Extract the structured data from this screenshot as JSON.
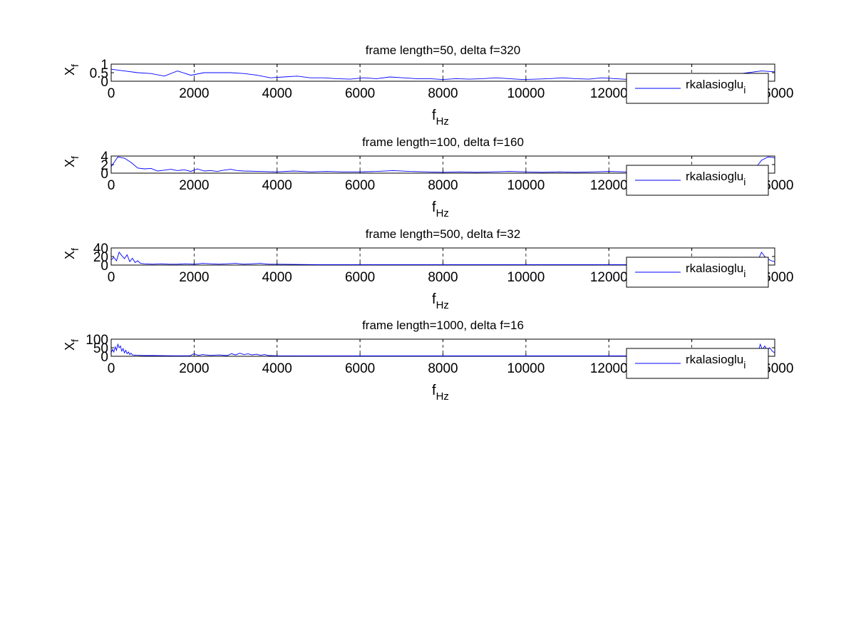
{
  "chart_data": [
    {
      "type": "line",
      "title": "frame length=50, delta f=320",
      "xlabel": "f",
      "xlabel_sub": "Hz",
      "ylabel": "X",
      "ylabel_sub": "f",
      "xlim": [
        0,
        16000
      ],
      "ylim": [
        0,
        1
      ],
      "xticks": [
        0,
        2000,
        4000,
        6000,
        8000,
        10000,
        12000,
        14000,
        16000
      ],
      "xtick_labels": [
        "0",
        "2000",
        "4000",
        "6000",
        "8000",
        "10000",
        "12000",
        "14000",
        "16000"
      ],
      "yticks": [
        0,
        0.5,
        1
      ],
      "ytick_labels": [
        "0",
        "0.5",
        "1"
      ],
      "grid": "x-dashed",
      "legend": "bottom-right",
      "series": [
        {
          "name": "rkalasioglu",
          "name_sub": "i",
          "color": "#0000ff",
          "x": [
            0,
            320,
            640,
            960,
            1280,
            1600,
            1920,
            2240,
            2560,
            2880,
            3200,
            3520,
            3840,
            4160,
            4480,
            4800,
            5120,
            5440,
            5760,
            6080,
            6400,
            6720,
            7040,
            7360,
            7680,
            8000,
            8320,
            8640,
            8960,
            9280,
            9600,
            9920,
            10240,
            10560,
            10880,
            11200,
            11520,
            11840,
            12160,
            12480,
            12800,
            13120,
            13440,
            13760,
            14080,
            14400,
            14720,
            15040,
            15360,
            15680,
            16000
          ],
          "y": [
            0.7,
            0.6,
            0.5,
            0.45,
            0.3,
            0.6,
            0.35,
            0.5,
            0.5,
            0.5,
            0.45,
            0.35,
            0.2,
            0.25,
            0.3,
            0.2,
            0.2,
            0.15,
            0.12,
            0.2,
            0.15,
            0.25,
            0.2,
            0.15,
            0.15,
            0.1,
            0.15,
            0.12,
            0.15,
            0.2,
            0.15,
            0.1,
            0.12,
            0.15,
            0.2,
            0.15,
            0.12,
            0.2,
            0.15,
            0.1,
            0.12,
            0.15,
            0.1,
            0.12,
            0.15,
            0.2,
            0.3,
            0.4,
            0.5,
            0.6,
            0.55
          ]
        }
      ]
    },
    {
      "type": "line",
      "title": "frame length=100, delta f=160",
      "xlabel": "f",
      "xlabel_sub": "Hz",
      "ylabel": "X",
      "ylabel_sub": "f",
      "xlim": [
        0,
        16000
      ],
      "ylim": [
        0,
        4
      ],
      "xticks": [
        0,
        2000,
        4000,
        6000,
        8000,
        10000,
        12000,
        14000,
        16000
      ],
      "xtick_labels": [
        "0",
        "2000",
        "4000",
        "6000",
        "8000",
        "10000",
        "12000",
        "14000",
        "16000"
      ],
      "yticks": [
        0,
        2,
        4
      ],
      "ytick_labels": [
        "0",
        "2",
        "4"
      ],
      "grid": "x-dashed",
      "legend": "bottom-right",
      "series": [
        {
          "name": "rkalasioglu",
          "name_sub": "i",
          "color": "#0000ff",
          "x": [
            0,
            160,
            320,
            480,
            640,
            800,
            960,
            1120,
            1280,
            1440,
            1600,
            1760,
            1920,
            2080,
            2240,
            2400,
            2560,
            2720,
            2880,
            3040,
            3200,
            3600,
            4000,
            4400,
            4800,
            5200,
            5600,
            6000,
            6400,
            6800,
            7200,
            7600,
            8000,
            8400,
            8800,
            9200,
            9600,
            10000,
            10400,
            10800,
            11200,
            11600,
            12000,
            12400,
            12800,
            13200,
            13600,
            14000,
            14400,
            14800,
            15200,
            15520,
            15680,
            15840,
            16000
          ],
          "y": [
            1.5,
            3.8,
            3.5,
            2.5,
            1.2,
            1.0,
            1.1,
            0.5,
            0.7,
            0.9,
            0.6,
            0.8,
            0.4,
            1.0,
            0.5,
            0.6,
            0.4,
            0.7,
            0.9,
            0.6,
            0.5,
            0.4,
            0.3,
            0.5,
            0.3,
            0.4,
            0.3,
            0.3,
            0.4,
            0.6,
            0.4,
            0.3,
            0.2,
            0.3,
            0.2,
            0.3,
            0.4,
            0.3,
            0.2,
            0.3,
            0.2,
            0.3,
            0.4,
            0.3,
            0.2,
            0.3,
            0.2,
            0.3,
            0.2,
            0.3,
            0.5,
            1.0,
            3.0,
            3.8,
            3.6
          ]
        }
      ]
    },
    {
      "type": "line",
      "title": "frame length=500, delta f=32",
      "xlabel": "f",
      "xlabel_sub": "Hz",
      "ylabel": "X",
      "ylabel_sub": "f",
      "xlim": [
        0,
        16000
      ],
      "ylim": [
        0,
        40
      ],
      "xticks": [
        0,
        2000,
        4000,
        6000,
        8000,
        10000,
        12000,
        14000,
        16000
      ],
      "xtick_labels": [
        "0",
        "2000",
        "4000",
        "6000",
        "8000",
        "10000",
        "12000",
        "14000",
        "16000"
      ],
      "yticks": [
        0,
        20,
        40
      ],
      "ytick_labels": [
        "0",
        "20",
        "40"
      ],
      "grid": "x-dashed",
      "legend": "bottom-right",
      "series": [
        {
          "name": "rkalasioglu",
          "name_sub": "i",
          "color": "#0000ff",
          "x": [
            0,
            64,
            128,
            192,
            256,
            320,
            384,
            448,
            512,
            576,
            640,
            704,
            800,
            1000,
            1200,
            1400,
            1600,
            1800,
            2000,
            2200,
            2400,
            2600,
            2800,
            3000,
            3200,
            3400,
            3600,
            3800,
            4000,
            5000,
            6000,
            7000,
            8000,
            9000,
            10000,
            11000,
            12000,
            13000,
            14000,
            15000,
            15500,
            15600,
            15680,
            15760,
            15840,
            15920,
            16000
          ],
          "y": [
            12,
            18,
            10,
            30,
            22,
            15,
            24,
            8,
            16,
            6,
            10,
            4,
            3,
            2,
            3,
            2,
            2,
            3,
            2,
            4,
            3,
            2,
            3,
            4,
            2,
            3,
            4,
            2,
            2,
            1,
            1,
            1,
            1,
            1,
            1,
            1,
            1,
            1,
            1,
            2,
            5,
            12,
            30,
            20,
            14,
            10,
            8
          ]
        }
      ]
    },
    {
      "type": "line",
      "title": "frame length=1000, delta f=16",
      "xlabel": "f",
      "xlabel_sub": "Hz",
      "ylabel": "X",
      "ylabel_sub": "f",
      "xlim": [
        0,
        16000
      ],
      "ylim": [
        0,
        100
      ],
      "xticks": [
        0,
        2000,
        4000,
        6000,
        8000,
        10000,
        12000,
        14000,
        16000
      ],
      "xtick_labels": [
        "0",
        "2000",
        "4000",
        "6000",
        "8000",
        "10000",
        "12000",
        "14000",
        "16000"
      ],
      "yticks": [
        0,
        50,
        100
      ],
      "ytick_labels": [
        "0",
        "50",
        "100"
      ],
      "grid": "x-dashed",
      "legend": "bottom-right",
      "series": [
        {
          "name": "rkalasioglu",
          "name_sub": "i",
          "color": "#0000ff",
          "x": [
            0,
            32,
            64,
            96,
            128,
            160,
            192,
            224,
            256,
            288,
            320,
            352,
            384,
            416,
            448,
            480,
            512,
            600,
            800,
            1000,
            1500,
            1900,
            2000,
            2100,
            2200,
            2400,
            2600,
            2800,
            2900,
            3000,
            3100,
            3200,
            3300,
            3400,
            3500,
            3600,
            3700,
            3800,
            4000,
            6000,
            8000,
            10000,
            12000,
            14000,
            15500,
            15600,
            15650,
            15700,
            15760,
            15820,
            15880,
            15940,
            16000
          ],
          "y": [
            20,
            40,
            25,
            55,
            35,
            70,
            50,
            60,
            30,
            45,
            20,
            35,
            15,
            25,
            10,
            18,
            8,
            6,
            4,
            4,
            3,
            3,
            15,
            5,
            10,
            5,
            8,
            4,
            15,
            8,
            18,
            10,
            14,
            8,
            12,
            6,
            10,
            4,
            3,
            2,
            2,
            2,
            2,
            2,
            5,
            20,
            70,
            40,
            60,
            35,
            50,
            30,
            20
          ]
        }
      ]
    }
  ]
}
